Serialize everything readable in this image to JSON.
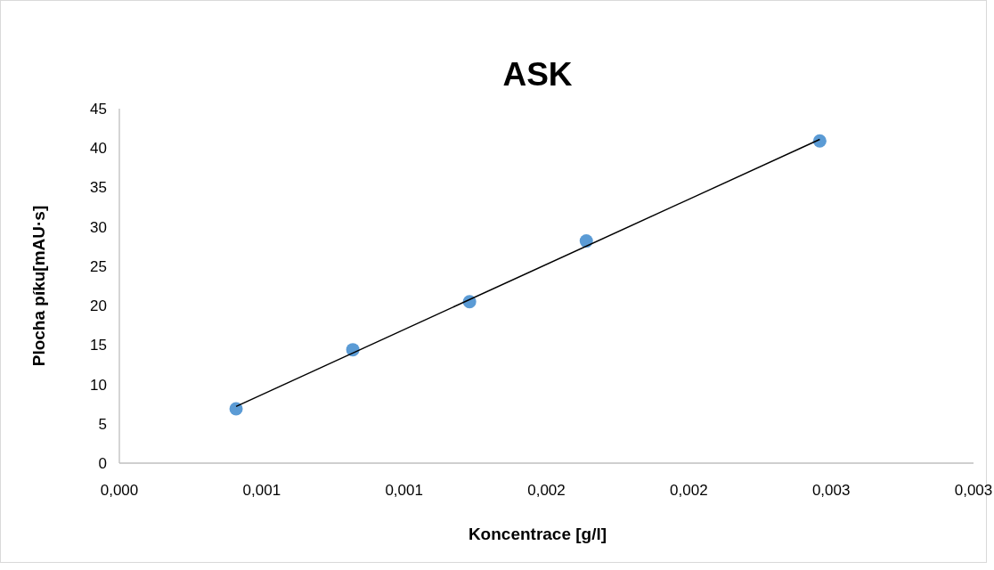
{
  "chart_data": {
    "type": "scatter",
    "title": "ASK",
    "xlabel": "Koncentrace [g/l]",
    "ylabel": "Plocha píku[mAU·s]",
    "series": [
      {
        "color": "#5b9bd5",
        "x": [
          0.00041,
          0.00082,
          0.00123,
          0.00164,
          0.00246
        ],
        "values": [
          6.9,
          14.4,
          20.5,
          28.2,
          40.9
        ],
        "marker": "circle"
      },
      {
        "type": "line",
        "color": "#000000",
        "x": [
          0.00041,
          0.00246
        ],
        "values": [
          7.2,
          41.1
        ],
        "marker": "none"
      }
    ],
    "xlim": [
      0,
      0.003
    ],
    "xticks": [
      {
        "value": 0,
        "label": "0,000"
      },
      {
        "value": 0.0005,
        "label": "0,001"
      },
      {
        "value": 0.001,
        "label": "0,001"
      },
      {
        "value": 0.0015,
        "label": "0,002"
      },
      {
        "value": 0.002,
        "label": "0,002"
      },
      {
        "value": 0.0025,
        "label": "0,003"
      },
      {
        "value": 0.003,
        "label": "0,003"
      }
    ],
    "ylim": [
      0,
      45
    ],
    "yticks": [
      0,
      5,
      10,
      15,
      20,
      25,
      30,
      35,
      40,
      45
    ],
    "grid": false
  }
}
